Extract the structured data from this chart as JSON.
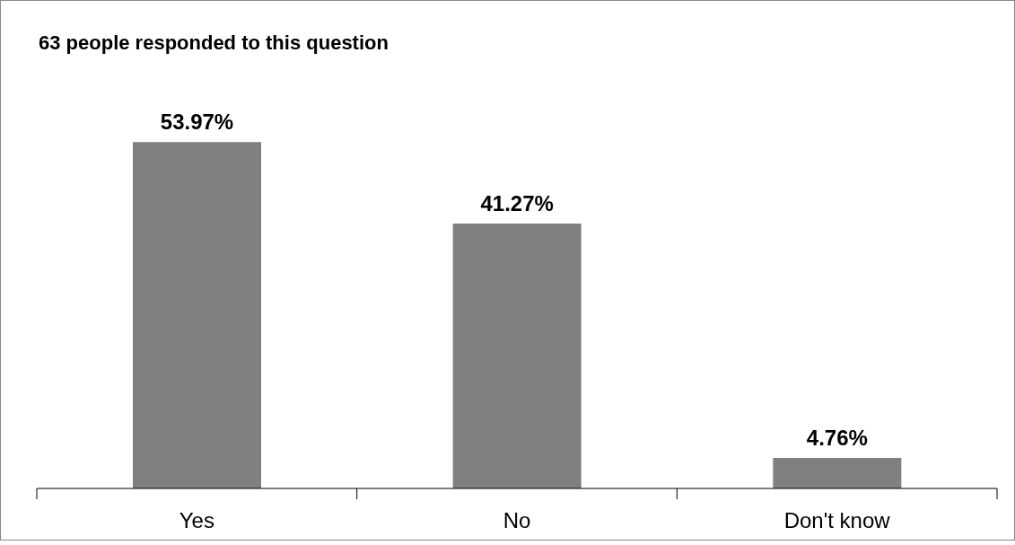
{
  "chart_data": {
    "type": "bar",
    "title": "63 people responded to this question",
    "categories": [
      "Yes",
      "No",
      "Don't know"
    ],
    "values": [
      53.97,
      41.27,
      4.76
    ],
    "value_labels": [
      "53.97%",
      "41.27%",
      "4.76%"
    ],
    "color": "#808080",
    "grid": false,
    "legend": false
  }
}
